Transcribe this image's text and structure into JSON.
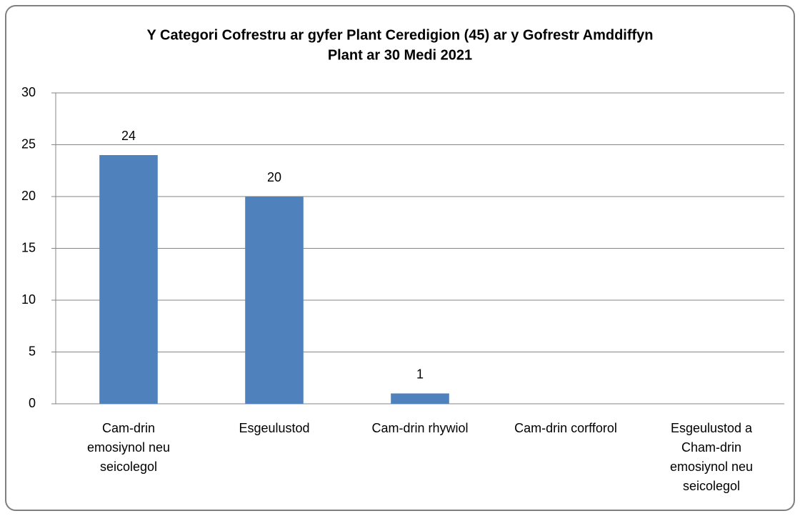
{
  "chart_data": {
    "type": "bar",
    "title": [
      "Y Categori Cofrestru ar gyfer Plant Ceredigion (45) ar y Gofrestr Amddiffyn",
      "Plant ar 30 Medi 2021"
    ],
    "categories": [
      [
        "Cam-drin",
        "emosiynol neu",
        "seicolegol"
      ],
      [
        "Esgeulustod"
      ],
      [
        "Cam-drin rhywiol"
      ],
      [
        "Cam-drin corfforol"
      ],
      [
        "Esgeulustod a",
        "Cham-drin",
        "emosiynol neu",
        "seicolegol"
      ]
    ],
    "values": [
      24,
      20,
      1,
      null,
      null
    ],
    "color": "#4f81bd",
    "ylim": [
      0,
      30
    ],
    "yticks": [
      0,
      5,
      10,
      15,
      20,
      25,
      30
    ],
    "grid": true
  }
}
